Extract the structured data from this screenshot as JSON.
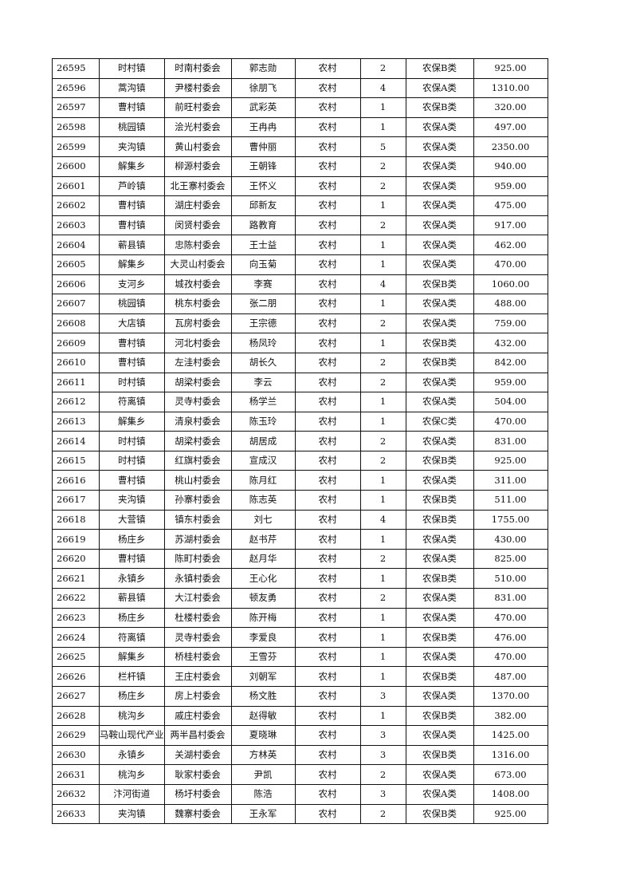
{
  "rows": [
    [
      "26595",
      "时村镇",
      "时南村委会",
      "郭志勋",
      "农村",
      "2",
      "农保B类",
      "925.00"
    ],
    [
      "26596",
      "蒿沟镇",
      "尹楼村委会",
      "徐朋飞",
      "农村",
      "4",
      "农保A类",
      "1310.00"
    ],
    [
      "26597",
      "曹村镇",
      "前旺村委会",
      "武彩英",
      "农村",
      "1",
      "农保B类",
      "320.00"
    ],
    [
      "26598",
      "桃园镇",
      "浍光村委会",
      "王冉冉",
      "农村",
      "1",
      "农保A类",
      "497.00"
    ],
    [
      "26599",
      "夹沟镇",
      "黄山村委会",
      "曹仲丽",
      "农村",
      "5",
      "农保A类",
      "2350.00"
    ],
    [
      "26600",
      "解集乡",
      "柳源村委会",
      "王朝锋",
      "农村",
      "2",
      "农保A类",
      "940.00"
    ],
    [
      "26601",
      "芦岭镇",
      "北王寨村委会",
      "王怀义",
      "农村",
      "2",
      "农保A类",
      "959.00"
    ],
    [
      "26602",
      "曹村镇",
      "湖庄村委会",
      "邱新友",
      "农村",
      "1",
      "农保A类",
      "475.00"
    ],
    [
      "26603",
      "曹村镇",
      "闵贤村委会",
      "路教育",
      "农村",
      "2",
      "农保A类",
      "917.00"
    ],
    [
      "26604",
      "蕲县镇",
      "忠陈村委会",
      "王士益",
      "农村",
      "1",
      "农保A类",
      "462.00"
    ],
    [
      "26605",
      "解集乡",
      "大灵山村委会",
      "向玉菊",
      "农村",
      "1",
      "农保A类",
      "470.00"
    ],
    [
      "26606",
      "支河乡",
      "城孜村委会",
      "李赛",
      "农村",
      "4",
      "农保B类",
      "1060.00"
    ],
    [
      "26607",
      "桃园镇",
      "桃东村委会",
      "张二朋",
      "农村",
      "1",
      "农保A类",
      "488.00"
    ],
    [
      "26608",
      "大店镇",
      "瓦房村委会",
      "王宗德",
      "农村",
      "2",
      "农保A类",
      "759.00"
    ],
    [
      "26609",
      "曹村镇",
      "河北村委会",
      "杨凤玲",
      "农村",
      "1",
      "农保B类",
      "432.00"
    ],
    [
      "26610",
      "曹村镇",
      "左洼村委会",
      "胡长久",
      "农村",
      "2",
      "农保B类",
      "842.00"
    ],
    [
      "26611",
      "时村镇",
      "胡梁村委会",
      "李云",
      "农村",
      "2",
      "农保A类",
      "959.00"
    ],
    [
      "26612",
      "符离镇",
      "灵寺村委会",
      "杨学兰",
      "农村",
      "1",
      "农保A类",
      "504.00"
    ],
    [
      "26613",
      "解集乡",
      "清泉村委会",
      "陈玉玲",
      "农村",
      "1",
      "农保C类",
      "470.00"
    ],
    [
      "26614",
      "时村镇",
      "胡梁村委会",
      "胡居成",
      "农村",
      "2",
      "农保A类",
      "831.00"
    ],
    [
      "26615",
      "时村镇",
      "红旗村委会",
      "宣成汉",
      "农村",
      "2",
      "农保B类",
      "925.00"
    ],
    [
      "26616",
      "曹村镇",
      "桃山村委会",
      "陈月红",
      "农村",
      "1",
      "农保A类",
      "311.00"
    ],
    [
      "26617",
      "夹沟镇",
      "孙寨村委会",
      "陈志英",
      "农村",
      "1",
      "农保B类",
      "511.00"
    ],
    [
      "26618",
      "大营镇",
      "镇东村委会",
      "刘七",
      "农村",
      "4",
      "农保B类",
      "1755.00"
    ],
    [
      "26619",
      "杨庄乡",
      "苏湖村委会",
      "赵书芹",
      "农村",
      "1",
      "农保A类",
      "430.00"
    ],
    [
      "26620",
      "曹村镇",
      "陈町村委会",
      "赵月华",
      "农村",
      "2",
      "农保A类",
      "825.00"
    ],
    [
      "26621",
      "永镇乡",
      "永镇村委会",
      "王心化",
      "农村",
      "1",
      "农保B类",
      "510.00"
    ],
    [
      "26622",
      "蕲县镇",
      "大江村委会",
      "顿友勇",
      "农村",
      "2",
      "农保A类",
      "831.00"
    ],
    [
      "26623",
      "杨庄乡",
      "杜楼村委会",
      "陈开梅",
      "农村",
      "1",
      "农保A类",
      "470.00"
    ],
    [
      "26624",
      "符离镇",
      "灵寺村委会",
      "李爱良",
      "农村",
      "1",
      "农保B类",
      "476.00"
    ],
    [
      "26625",
      "解集乡",
      "桥桂村委会",
      "王雪芬",
      "农村",
      "1",
      "农保A类",
      "470.00"
    ],
    [
      "26626",
      "栏杆镇",
      "王庄村委会",
      "刘朝军",
      "农村",
      "1",
      "农保B类",
      "487.00"
    ],
    [
      "26627",
      "杨庄乡",
      "房上村委会",
      "杨文胜",
      "农村",
      "3",
      "农保A类",
      "1370.00"
    ],
    [
      "26628",
      "桃沟乡",
      "戚庄村委会",
      "赵得敏",
      "农村",
      "1",
      "农保B类",
      "382.00"
    ],
    [
      "26629",
      "马鞍山现代产业",
      "两半昌村委会",
      "夏晓琳",
      "农村",
      "3",
      "农保A类",
      "1425.00"
    ],
    [
      "26630",
      "永镇乡",
      "关湖村委会",
      "方林英",
      "农村",
      "3",
      "农保B类",
      "1316.00"
    ],
    [
      "26631",
      "桃沟乡",
      "耿家村委会",
      "尹凯",
      "农村",
      "2",
      "农保A类",
      "673.00"
    ],
    [
      "26632",
      "汴河街道",
      "杨圩村委会",
      "陈浩",
      "农村",
      "3",
      "农保A类",
      "1408.00"
    ],
    [
      "26633",
      "夹沟镇",
      "魏寨村委会",
      "王永军",
      "农村",
      "2",
      "农保B类",
      "925.00"
    ]
  ]
}
